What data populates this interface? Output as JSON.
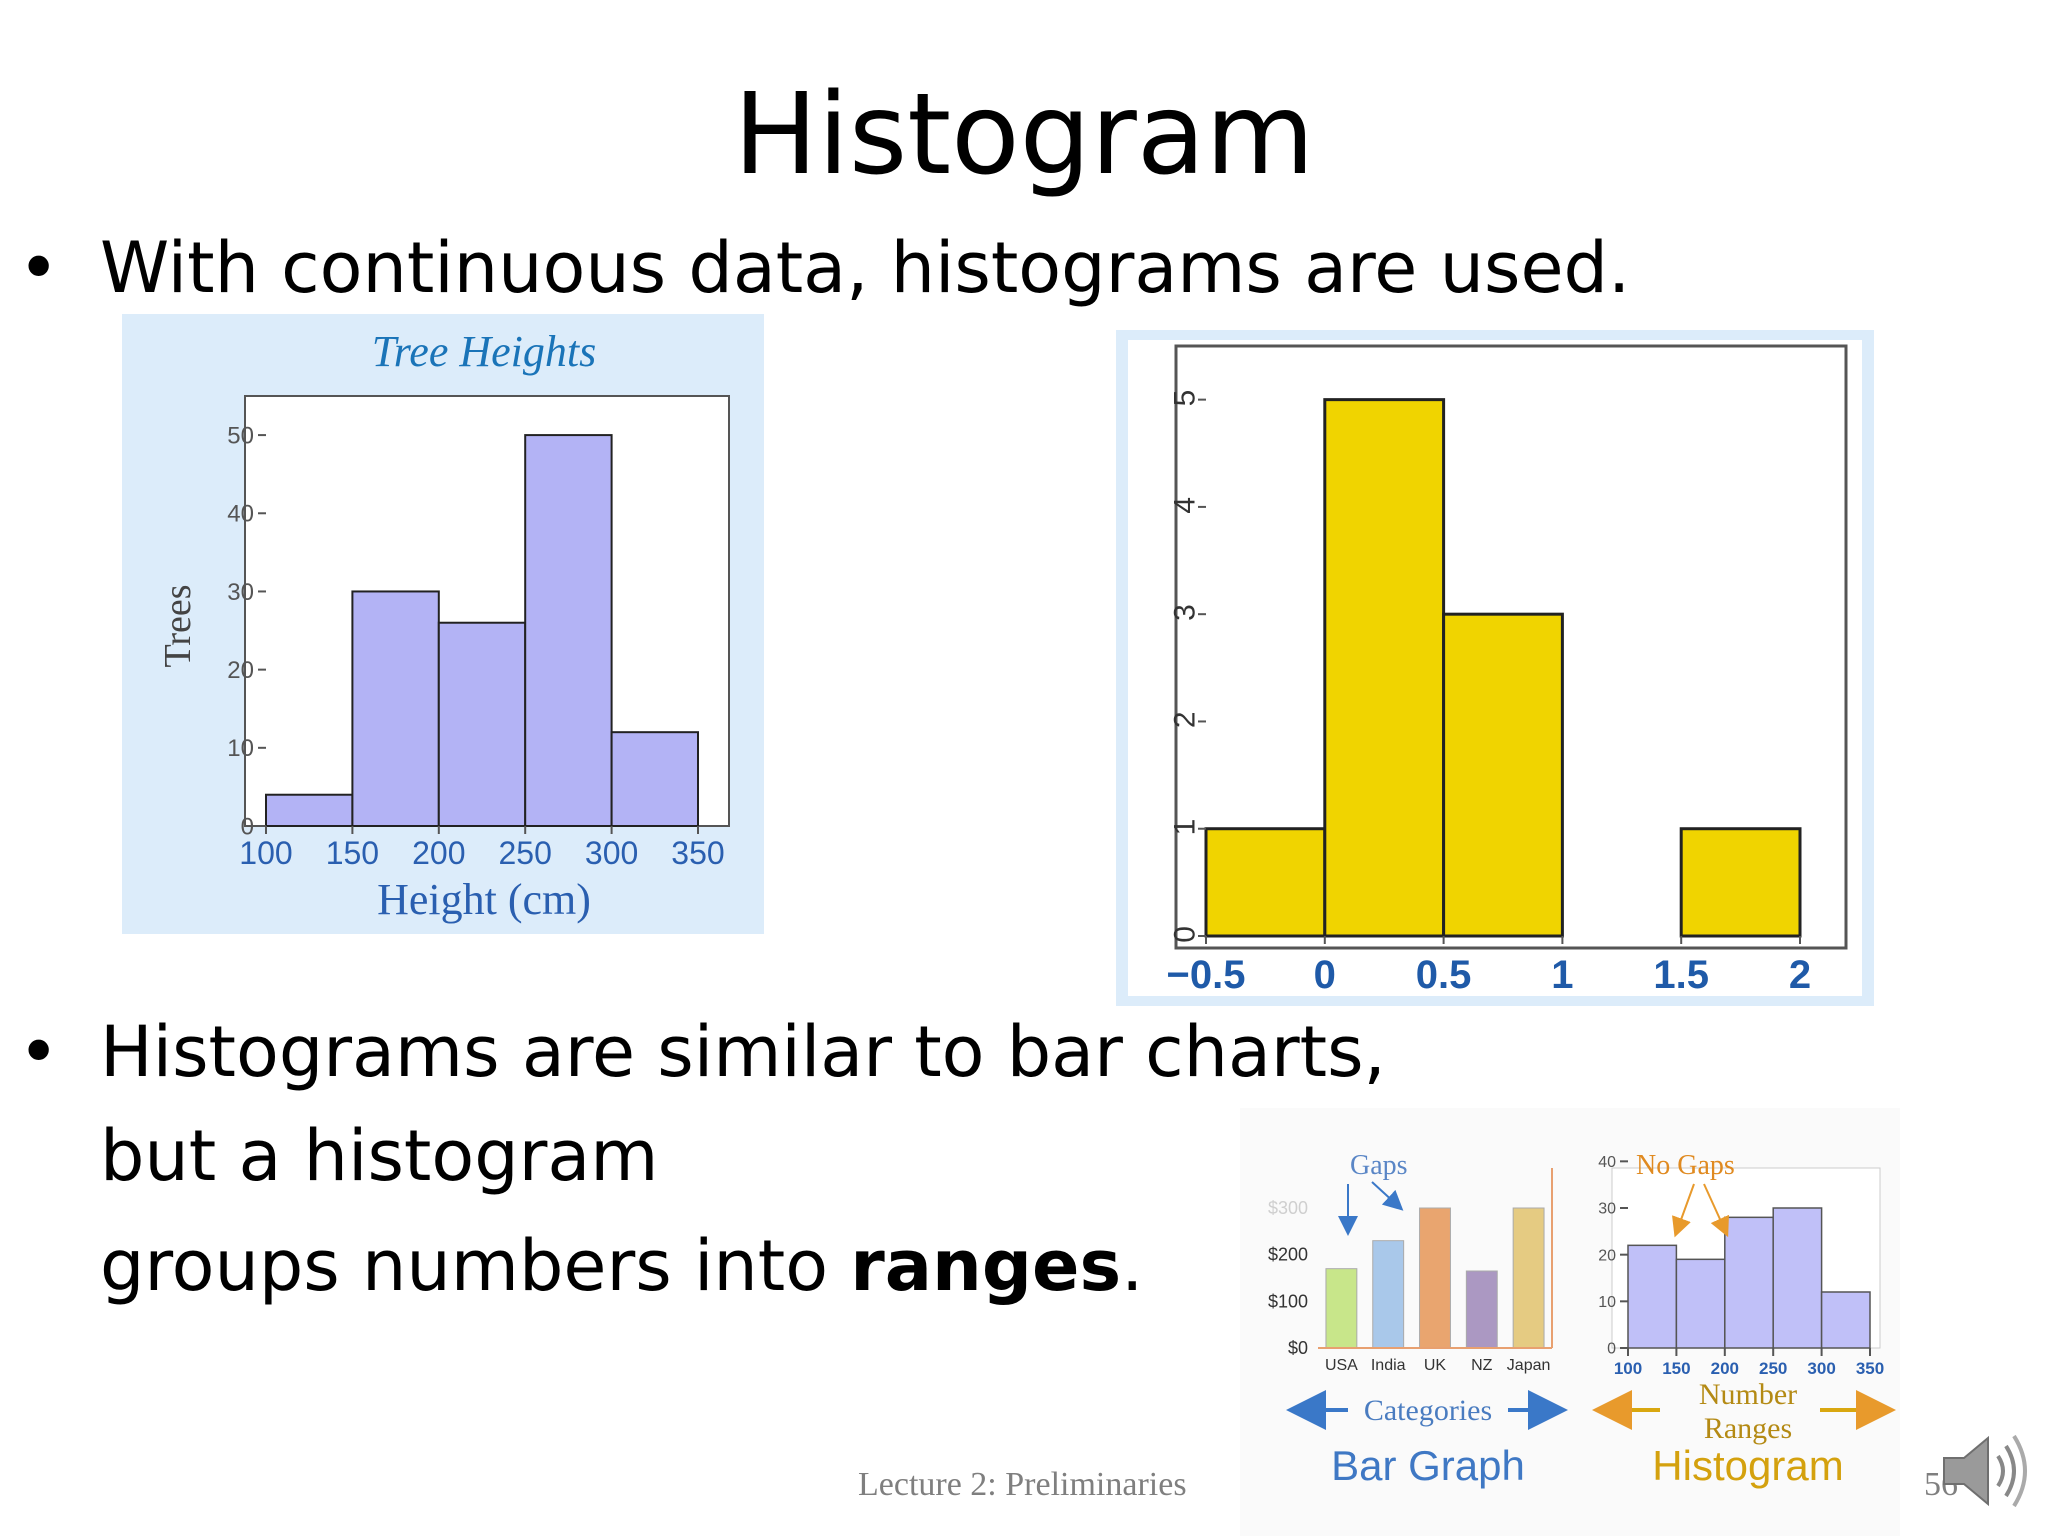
{
  "slide": {
    "title": "Histogram",
    "bullet1": "With continuous data, histograms are used.",
    "bullet2_line1": "Histograms are similar to bar charts, but a histogram",
    "bullet2_line2_prefix": "groups numbers into ",
    "bullet2_bold": "ranges",
    "bullet2_suffix": ".",
    "bullet_glyph": "•",
    "footer": "Lecture 2: Preliminaries",
    "page_number": "56",
    "speaker_icon": "speaker-icon"
  },
  "chart_data": [
    {
      "type": "bar",
      "title": "Tree Heights",
      "xlabel": "Height (cm)",
      "ylabel": "Trees",
      "bins": [
        [
          100,
          150
        ],
        [
          150,
          200
        ],
        [
          200,
          250
        ],
        [
          250,
          300
        ],
        [
          300,
          350
        ]
      ],
      "values": [
        4,
        30,
        26,
        50,
        12
      ],
      "x_ticks": [
        "100",
        "150",
        "200",
        "250",
        "300",
        "350"
      ],
      "y_ticks": [
        "0",
        "10",
        "20",
        "30",
        "40",
        "50"
      ],
      "ylim": [
        0,
        55
      ],
      "bar_color": "#b3b3f5",
      "background": "#dcecfa"
    },
    {
      "type": "bar",
      "title": "",
      "xlabel": "",
      "ylabel": "",
      "bins": [
        [
          -0.5,
          0
        ],
        [
          0,
          0.5
        ],
        [
          0.5,
          1
        ],
        [
          1,
          1.5
        ],
        [
          1.5,
          2
        ]
      ],
      "values": [
        1,
        5,
        3,
        0,
        1
      ],
      "x_ticks": [
        "−0.5",
        "0",
        "0.5",
        "1",
        "1.5",
        "2"
      ],
      "y_ticks": [
        "0",
        "1",
        "2",
        "3",
        "4",
        "5"
      ],
      "ylim": [
        0,
        5.5
      ],
      "bar_color": "#f0d400",
      "tick_color": "#1f5aa8"
    },
    {
      "type": "bar",
      "title": "Bar Graph",
      "annotation": "Gaps",
      "axis_caption": "Categories",
      "categories": [
        "USA",
        "India",
        "UK",
        "NZ",
        "Japan"
      ],
      "values": [
        170,
        230,
        300,
        165,
        300
      ],
      "y_ticks": [
        "$0",
        "$100",
        "$200",
        "$300"
      ],
      "ylim": [
        0,
        300
      ],
      "colors": [
        "#c8e68a",
        "#a9c8ea",
        "#e9a56f",
        "#ab98c2",
        "#e5cb82"
      ]
    },
    {
      "type": "bar",
      "title": "Histogram",
      "annotation": "No Gaps",
      "axis_caption_line1": "Number",
      "axis_caption_line2": "Ranges",
      "bins": [
        [
          100,
          150
        ],
        [
          150,
          200
        ],
        [
          200,
          250
        ],
        [
          250,
          300
        ],
        [
          300,
          350
        ]
      ],
      "values": [
        22,
        19,
        28,
        30,
        12
      ],
      "x_ticks": [
        "100",
        "150",
        "200",
        "250",
        "300",
        "350"
      ],
      "y_ticks": [
        "0",
        "10",
        "20",
        "30",
        "40"
      ],
      "ylim": [
        0,
        30
      ],
      "bar_color": "#c0c0f8"
    }
  ]
}
